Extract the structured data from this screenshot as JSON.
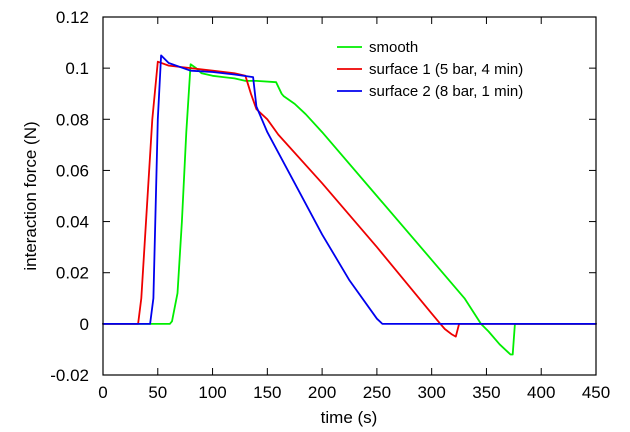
{
  "chart_data": {
    "type": "line",
    "xlabel": "time (s)",
    "ylabel": "interaction force (N)",
    "xlim": [
      0,
      450
    ],
    "ylim": [
      -0.02,
      0.12
    ],
    "xticks": [
      0,
      50,
      100,
      150,
      200,
      250,
      300,
      350,
      400,
      450
    ],
    "yticks": [
      -0.02,
      0,
      0.02,
      0.04,
      0.06,
      0.08,
      0.1,
      0.12
    ],
    "xtick_labels": [
      "0",
      "50",
      "100",
      "150",
      "200",
      "250",
      "300",
      "350",
      "400",
      "450"
    ],
    "ytick_labels": [
      "-0.02",
      "0",
      "0.02",
      "0.04",
      "0.06",
      "0.08",
      "0.1",
      "0.12"
    ],
    "grid": false,
    "legend_position": "top-right",
    "series": [
      {
        "name": "smooth",
        "color": "#00ee00",
        "x": [
          0,
          61,
          63,
          68,
          72,
          76,
          80,
          85,
          90,
          100,
          110,
          120,
          130,
          140,
          158,
          163,
          165,
          175,
          185,
          200,
          250,
          300,
          330,
          345,
          352,
          362,
          372,
          374,
          376,
          400,
          450
        ],
        "y": [
          0,
          0,
          0.001,
          0.012,
          0.04,
          0.075,
          0.1015,
          0.1,
          0.098,
          0.097,
          0.0965,
          0.096,
          0.095,
          0.095,
          0.0945,
          0.09,
          0.089,
          0.086,
          0.082,
          0.075,
          0.05,
          0.025,
          0.01,
          0.0,
          -0.003,
          -0.008,
          -0.012,
          -0.012,
          0.0,
          0.0,
          0.0
        ]
      },
      {
        "name": "surface 1 (5 bar, 4 min)",
        "color": "#ee0000",
        "x": [
          0,
          32,
          35,
          40,
          45,
          50,
          60,
          80,
          100,
          120,
          130,
          135,
          140,
          150,
          160,
          200,
          250,
          300,
          308,
          312,
          318,
          322,
          325,
          350,
          400,
          450
        ],
        "y": [
          0,
          0,
          0.01,
          0.045,
          0.08,
          0.1025,
          0.101,
          0.1,
          0.099,
          0.098,
          0.097,
          0.09,
          0.084,
          0.08,
          0.074,
          0.055,
          0.03,
          0.004,
          0.0,
          -0.002,
          -0.004,
          -0.005,
          0.0,
          0.0,
          0.0,
          0.0
        ]
      },
      {
        "name": "surface 2 (8 bar, 1 min)",
        "color": "#0000ee",
        "x": [
          0,
          43,
          46,
          50,
          53,
          60,
          80,
          100,
          120,
          137,
          140,
          150,
          175,
          200,
          225,
          250,
          255,
          280,
          320,
          400,
          450
        ],
        "y": [
          0,
          0,
          0.01,
          0.08,
          0.105,
          0.102,
          0.099,
          0.0985,
          0.0975,
          0.0965,
          0.085,
          0.075,
          0.055,
          0.035,
          0.017,
          0.002,
          0.0,
          0.0,
          0.0,
          0.0,
          0.0
        ]
      }
    ]
  }
}
